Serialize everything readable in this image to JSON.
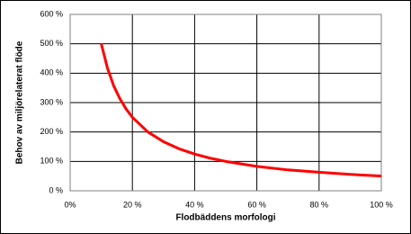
{
  "chart_data": {
    "type": "line",
    "x_label": "Flodbäddens morfologi",
    "y_label": "Behov av miljörelaterat flöde",
    "x": [
      10,
      12,
      14,
      16,
      18,
      20,
      25,
      30,
      35,
      40,
      45,
      50,
      60,
      70,
      80,
      90,
      100
    ],
    "series": [
      {
        "color": "#ff0000",
        "values": [
          500,
          417,
          357,
          313,
          278,
          250,
          200,
          167,
          143,
          125,
          111,
          100,
          83,
          71,
          63,
          56,
          50
        ]
      }
    ],
    "xlim": [
      0,
      100
    ],
    "xticks": [
      {
        "value": 0,
        "label": "0%"
      },
      {
        "value": 20,
        "label": "20 %"
      },
      {
        "value": 40,
        "label": "40 %"
      },
      {
        "value": 60,
        "label": "60 %"
      },
      {
        "value": 80,
        "label": "80 %"
      },
      {
        "value": 100,
        "label": "100 %"
      }
    ],
    "ylim": [
      0,
      600
    ],
    "yticks": [
      {
        "value": 0,
        "label": "0 %"
      },
      {
        "value": 100,
        "label": "100 %"
      },
      {
        "value": 200,
        "label": "200 %"
      },
      {
        "value": 300,
        "label": "300 %"
      },
      {
        "value": 400,
        "label": "400 %"
      },
      {
        "value": 500,
        "label": "500 %"
      },
      {
        "value": 600,
        "label": "600 %"
      }
    ],
    "grid": true
  }
}
